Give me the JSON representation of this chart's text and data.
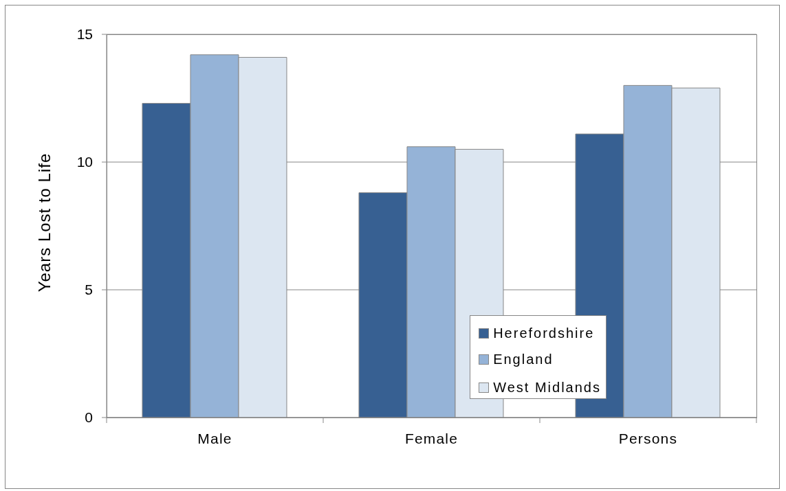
{
  "chart_data": {
    "type": "bar",
    "ylabel": "Years Lost to Life",
    "categories": [
      "Male",
      "Female",
      "Persons"
    ],
    "series": [
      {
        "name": "Herefordshire",
        "color": "#376092",
        "values": [
          12.3,
          8.8,
          11.1
        ]
      },
      {
        "name": "England",
        "color": "#95b3d7",
        "values": [
          14.2,
          10.6,
          13.0
        ]
      },
      {
        "name": "West Midlands",
        "color": "#dce6f1",
        "values": [
          14.1,
          10.5,
          12.9
        ]
      }
    ],
    "ylim": [
      0,
      15
    ],
    "yticks": [
      0,
      5,
      10,
      15
    ],
    "grid": "y",
    "legend": "bottom"
  }
}
